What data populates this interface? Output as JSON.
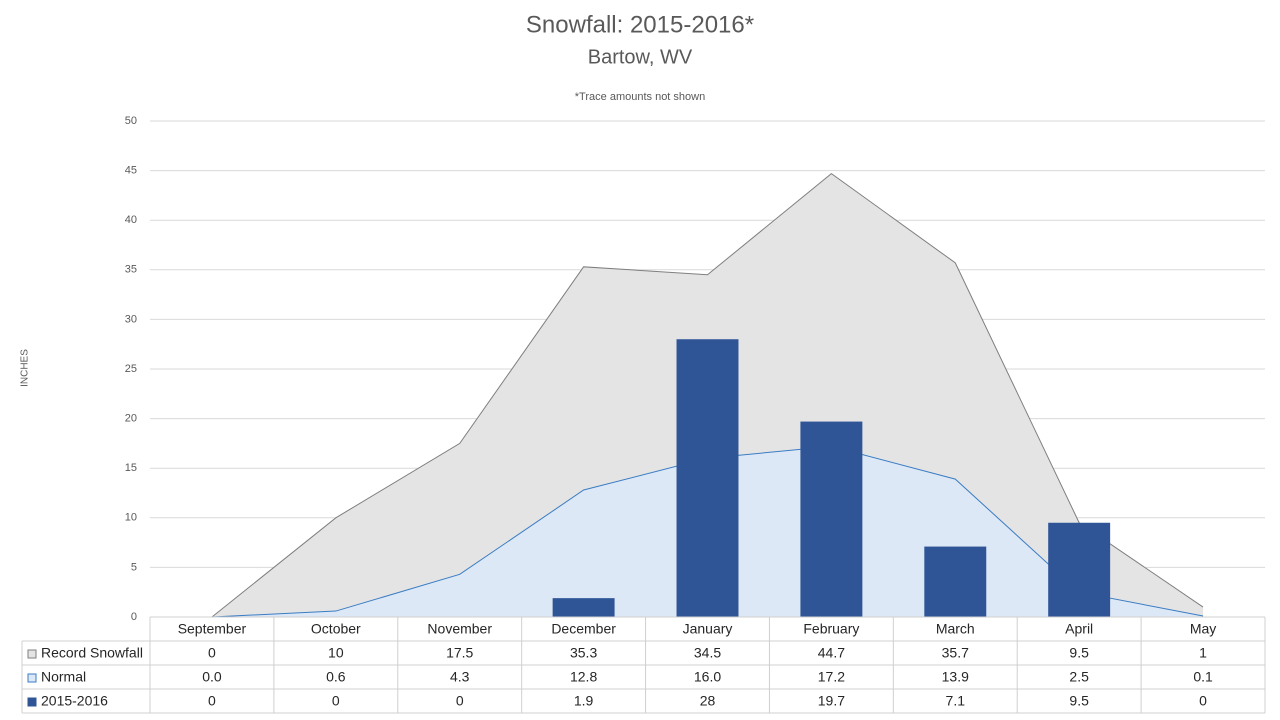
{
  "chart_data": {
    "type": "combo",
    "title": "Snowfall: 2015-2016*",
    "subtitle": "Bartow, WV",
    "note": "*Trace amounts not shown",
    "y_label": "INCHES",
    "categories": [
      "September",
      "October",
      "November",
      "December",
      "January",
      "February",
      "March",
      "April",
      "May"
    ],
    "ylim": [
      0,
      50
    ],
    "yticks": [
      0,
      5,
      10,
      15,
      20,
      25,
      30,
      35,
      40,
      45,
      50
    ],
    "grid": true,
    "series": [
      {
        "name": "Record Snowfall",
        "type": "area",
        "color": "#e4e4e4",
        "line_color": "#7f7f7f",
        "values": [
          0,
          10,
          17.5,
          35.3,
          34.5,
          44.7,
          35.7,
          9.5,
          1
        ]
      },
      {
        "name": "Normal",
        "type": "area",
        "color": "#dce8f5",
        "line_color": "#3a7cc4",
        "values": [
          0,
          0.6,
          4.3,
          12.8,
          16,
          17.2,
          13.9,
          2.5,
          0.1
        ],
        "value_labels": [
          "0.0",
          "0.6",
          "4.3",
          "12.8",
          "16.0",
          "17.2",
          "13.9",
          "2.5",
          "0.1"
        ]
      },
      {
        "name": "2015-2016",
        "type": "bar",
        "color": "#2f5597",
        "values": [
          0,
          0,
          0,
          1.9,
          28,
          19.7,
          7.1,
          9.5,
          0
        ]
      }
    ]
  }
}
